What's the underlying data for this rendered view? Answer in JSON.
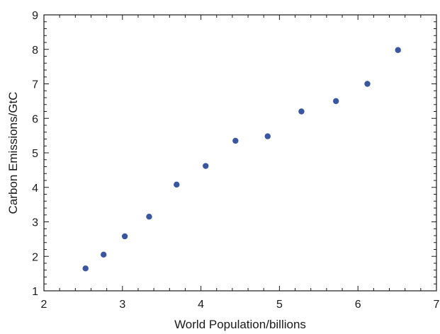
{
  "chart_data": {
    "type": "scatter",
    "xlabel": "World Population/billions",
    "ylabel": "Carbon Emissions/GtC",
    "xlim": [
      2,
      7
    ],
    "ylim": [
      1,
      9
    ],
    "x_ticks": [
      2,
      3,
      4,
      5,
      6,
      7
    ],
    "y_ticks": [
      1,
      2,
      3,
      4,
      5,
      6,
      7,
      8,
      9
    ],
    "grid": false,
    "series": [
      {
        "points": [
          {
            "x": 2.53,
            "y": 1.65
          },
          {
            "x": 2.76,
            "y": 2.05
          },
          {
            "x": 3.03,
            "y": 2.58
          },
          {
            "x": 3.34,
            "y": 3.15
          },
          {
            "x": 3.69,
            "y": 4.08
          },
          {
            "x": 4.06,
            "y": 4.62
          },
          {
            "x": 4.44,
            "y": 5.35
          },
          {
            "x": 4.85,
            "y": 5.48
          },
          {
            "x": 5.28,
            "y": 6.2
          },
          {
            "x": 5.72,
            "y": 6.5
          },
          {
            "x": 6.12,
            "y": 7.0
          },
          {
            "x": 6.51,
            "y": 7.98
          }
        ]
      }
    ],
    "colors": {
      "marker": "#3a56a0",
      "axis": "#1a1a1a"
    }
  }
}
